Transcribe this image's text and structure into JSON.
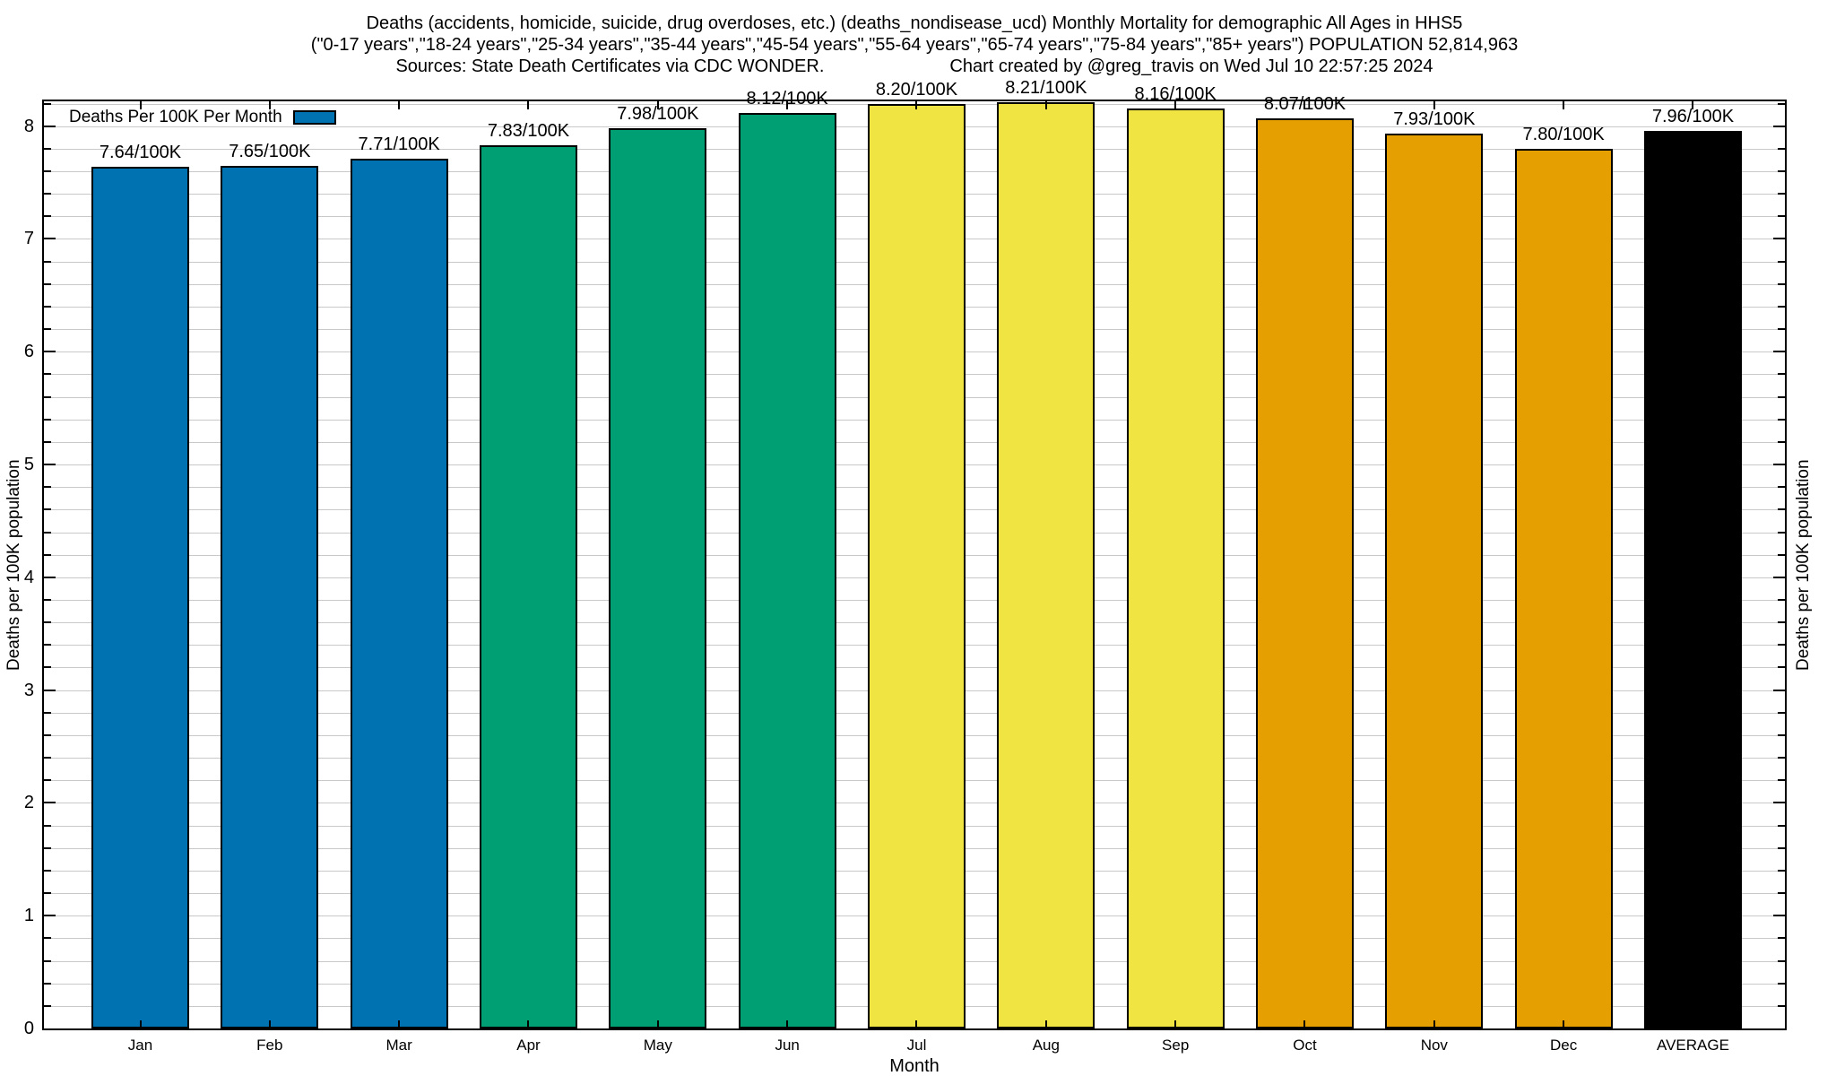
{
  "title": {
    "line1": "Deaths (accidents, homicide, suicide, drug overdoses, etc.) (deaths_nondisease_ucd) Monthly Mortality for demographic All Ages in HHS5",
    "line2": "(\"0-17 years\",\"18-24 years\",\"25-34 years\",\"35-44 years\",\"45-54 years\",\"55-64 years\",\"65-74 years\",\"75-84 years\",\"85+ years\") POPULATION 52,814,963",
    "line3_left": "Sources: State Death Certificates via CDC WONDER.",
    "line3_right": "Chart created by @greg_travis on Wed Jul 10 22:57:25 2024"
  },
  "chart_data": {
    "type": "bar",
    "title": "Deaths (accidents, homicide, suicide, drug overdoses, etc.) (deaths_nondisease_ucd) Monthly Mortality for demographic All Ages in HHS5",
    "subtitle": "(\"0-17 years\",\"18-24 years\",\"25-34 years\",\"35-44 years\",\"45-54 years\",\"55-64 years\",\"65-74 years\",\"75-84 years\",\"85+ years\") POPULATION 52,814,963",
    "source_note": "Sources: State Death Certificates via CDC WONDER.",
    "credit_note": "Chart created by @greg_travis on Wed Jul 10 22:57:25 2024",
    "categories": [
      "Jan",
      "Feb",
      "Mar",
      "Apr",
      "May",
      "Jun",
      "Jul",
      "Aug",
      "Sep",
      "Oct",
      "Nov",
      "Dec",
      "AVERAGE"
    ],
    "values": [
      7.64,
      7.65,
      7.71,
      7.83,
      7.98,
      8.12,
      8.2,
      8.21,
      8.16,
      8.07,
      7.93,
      7.8,
      7.96
    ],
    "bar_labels": [
      "7.64/100K",
      "7.65/100K",
      "7.71/100K",
      "7.83/100K",
      "7.98/100K",
      "8.12/100K",
      "8.20/100K",
      "8.21/100K",
      "8.16/100K",
      "8.07/100K",
      "7.93/100K",
      "7.80/100K",
      "7.96/100K"
    ],
    "bar_colors": [
      "#0072B2",
      "#0072B2",
      "#0072B2",
      "#009E73",
      "#009E73",
      "#009E73",
      "#F0E442",
      "#F0E442",
      "#F0E442",
      "#E69F00",
      "#E69F00",
      "#E69F00",
      "#000000"
    ],
    "xlabel": "Month",
    "ylabel_left": "Deaths per 100K population",
    "ylabel_right": "Deaths per 100K population",
    "ylim": [
      0,
      8.22
    ],
    "yticks": [
      0,
      1,
      2,
      3,
      4,
      5,
      6,
      7,
      8
    ],
    "minor_tick_step": 0.2,
    "grid": "horizontal, light gray, every 0.2",
    "legend": {
      "label": "Deaths Per 100K Per Month",
      "swatch_color": "#0072B2",
      "position": "top-left inside plot"
    },
    "gridline_color": "#c9c9c9",
    "frame_color": "#000000"
  }
}
